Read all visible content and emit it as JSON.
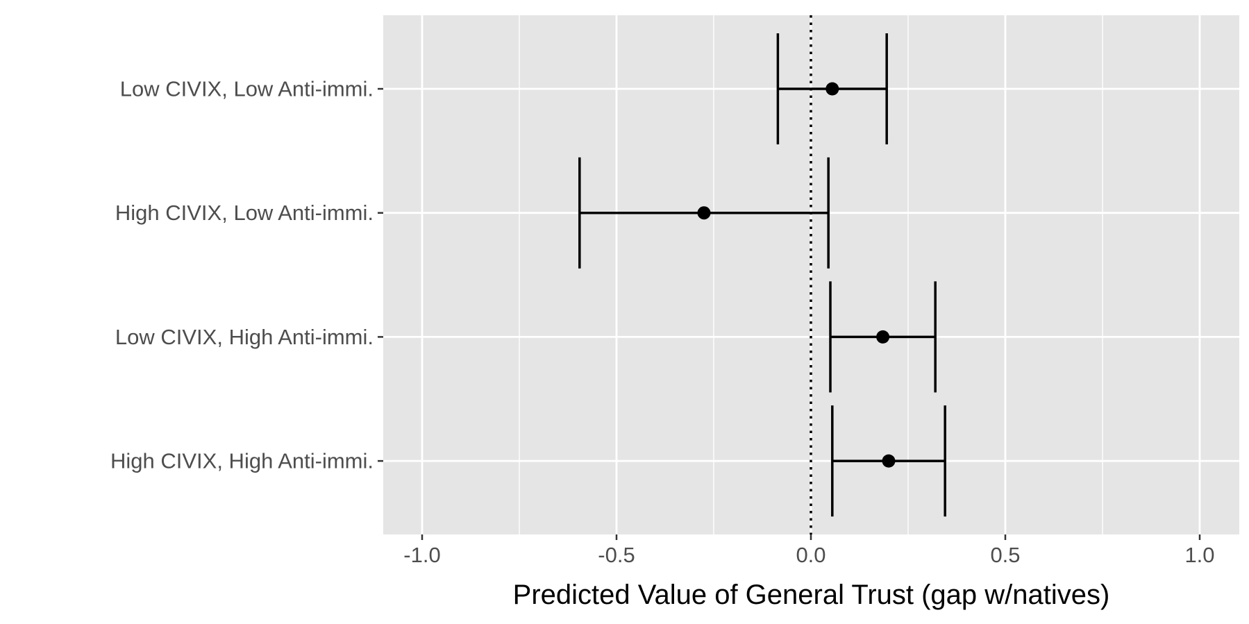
{
  "chart_data": {
    "type": "errorbar",
    "orientation": "horizontal",
    "title": "",
    "xlabel": "Predicted Value of General Trust (gap w/natives)",
    "ylabel": "",
    "xlim": [
      -1.1,
      1.1
    ],
    "x_ticks": [
      -1.0,
      -0.5,
      0.0,
      0.5,
      1.0
    ],
    "x_tick_labels": [
      "-1.0",
      "-0.5",
      "0.0",
      "0.5",
      "1.0"
    ],
    "categories": [
      "Low CIVIX, Low Anti-immi.",
      "High CIVIX, Low Anti-immi.",
      "Low CIVIX, High Anti-immi.",
      "High CIVIX, High Anti-immi."
    ],
    "estimates": [
      0.055,
      -0.275,
      0.185,
      0.2
    ],
    "lower": [
      -0.085,
      -0.595,
      0.05,
      0.055
    ],
    "upper": [
      0.195,
      0.045,
      0.32,
      0.345
    ],
    "reference_line": 0.0,
    "grid": true,
    "legend": "none",
    "colors": {
      "panel": "#e5e5e5",
      "grid": "#ffffff",
      "marks": "#000000",
      "tick_text": "#4d4d4d"
    }
  }
}
